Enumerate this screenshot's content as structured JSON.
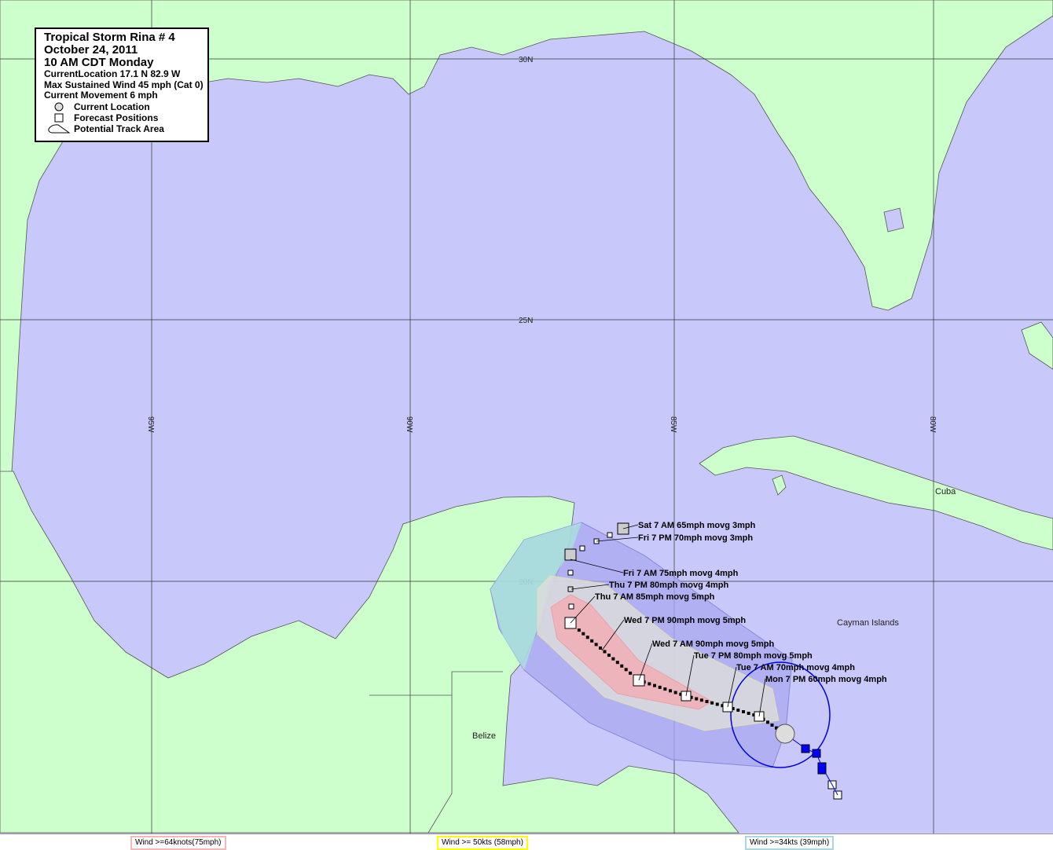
{
  "legend": {
    "title": "Tropical Storm Rina # 4",
    "date": "October 24, 2011",
    "time": "10 AM CDT Monday",
    "location": "CurrentLocation 17.1 N  82.9 W",
    "wind": "Max Sustained Wind 45 mph (Cat 0)",
    "movement": "Current Movement 6 mph",
    "symbols": [
      {
        "icon": "circle-icon",
        "label": "Current Location"
      },
      {
        "icon": "square-icon",
        "label": "Forecast Positions"
      },
      {
        "icon": "cone-icon",
        "label": "Potential Track Area"
      }
    ]
  },
  "grid": {
    "latitudes": [
      "30N",
      "25N",
      "20N"
    ],
    "longitudes": [
      "95W",
      "90W",
      "85W",
      "80W"
    ]
  },
  "places": [
    "Cuba",
    "Cayman Islands",
    "Belize"
  ],
  "forecast_labels": [
    "Sat 7 AM 65mph movg 3mph",
    "Fri 7 PM 70mph movg 3mph",
    "Fri 7 AM 75mph movg 4mph",
    "Thu 7 PM 80mph movg 4mph",
    "Thu 7 AM 85mph movg 5mph",
    "Wed 7 PM 90mph movg 5mph",
    "Wed 7 AM 90mph movg 5mph",
    "Tue 7 PM 80mph movg 5mph",
    "Tue 7 AM 70mph movg 4mph",
    "Mon 7 PM 60mph movg 4mph"
  ],
  "wind_keys": [
    {
      "label": "Wind >=64knots(75mph)",
      "color": "#f4b8b8"
    },
    {
      "label": "Wind >= 50kts (58mph)",
      "color": "#ffff00"
    },
    {
      "label": "Wind >=34kts (39mph)",
      "color": "#a8d8e0"
    }
  ],
  "colors": {
    "water": "#c8c8fa",
    "land": "#ccffcc",
    "cone34": "#a8a8f0",
    "cone50": "#dcdcdc",
    "cone64": "#f0b0b8",
    "track_past": "#0000ff"
  }
}
